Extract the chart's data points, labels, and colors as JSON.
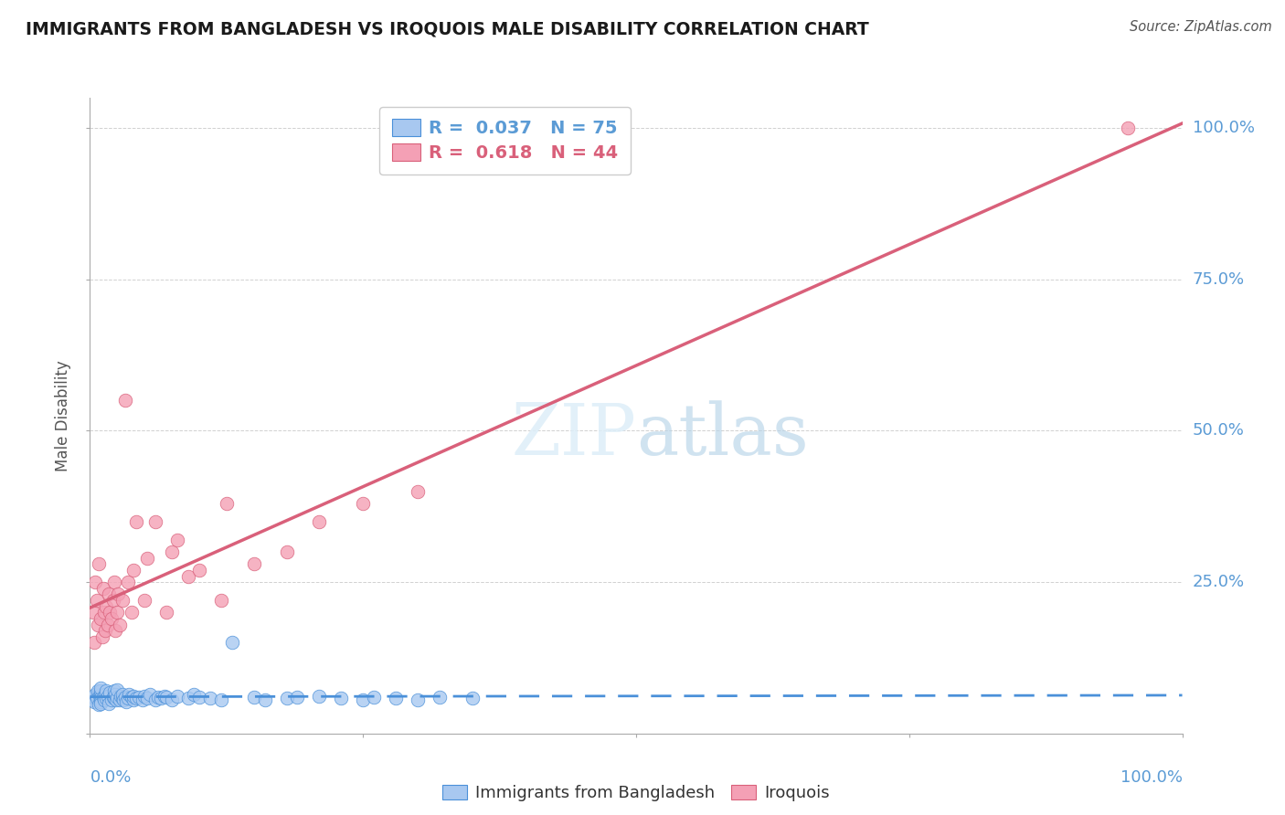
{
  "title": "IMMIGRANTS FROM BANGLADESH VS IROQUOIS MALE DISABILITY CORRELATION CHART",
  "source": "Source: ZipAtlas.com",
  "ylabel": "Male Disability",
  "series1_color": "#a8c8f0",
  "series2_color": "#f4a0b5",
  "line1_color": "#4a90d9",
  "line2_color": "#d9607a",
  "background_color": "#ffffff",
  "blue_label_color": "#5b9bd5",
  "blue_R": 0.037,
  "blue_N": 75,
  "pink_R": 0.618,
  "pink_N": 44,
  "blue_points_x": [
    0.002,
    0.003,
    0.004,
    0.005,
    0.006,
    0.007,
    0.008,
    0.009,
    0.01,
    0.01,
    0.01,
    0.01,
    0.01,
    0.01,
    0.01,
    0.01,
    0.012,
    0.013,
    0.014,
    0.015,
    0.015,
    0.016,
    0.017,
    0.018,
    0.02,
    0.021,
    0.022,
    0.022,
    0.023,
    0.024,
    0.025,
    0.025,
    0.027,
    0.028,
    0.03,
    0.03,
    0.031,
    0.032,
    0.033,
    0.035,
    0.036,
    0.038,
    0.04,
    0.04,
    0.042,
    0.045,
    0.048,
    0.05,
    0.052,
    0.055,
    0.06,
    0.062,
    0.065,
    0.068,
    0.07,
    0.075,
    0.08,
    0.09,
    0.095,
    0.1,
    0.11,
    0.12,
    0.13,
    0.15,
    0.16,
    0.18,
    0.19,
    0.21,
    0.23,
    0.25,
    0.26,
    0.28,
    0.3,
    0.32,
    0.35
  ],
  "blue_points_y": [
    0.055,
    0.06,
    0.052,
    0.065,
    0.058,
    0.07,
    0.048,
    0.063,
    0.055,
    0.06,
    0.065,
    0.07,
    0.058,
    0.052,
    0.075,
    0.05,
    0.06,
    0.055,
    0.065,
    0.058,
    0.07,
    0.062,
    0.05,
    0.068,
    0.055,
    0.06,
    0.058,
    0.07,
    0.065,
    0.055,
    0.06,
    0.072,
    0.055,
    0.062,
    0.058,
    0.065,
    0.055,
    0.06,
    0.052,
    0.058,
    0.065,
    0.06,
    0.055,
    0.062,
    0.058,
    0.06,
    0.055,
    0.062,
    0.058,
    0.065,
    0.055,
    0.06,
    0.058,
    0.062,
    0.06,
    0.055,
    0.062,
    0.058,
    0.065,
    0.06,
    0.058,
    0.055,
    0.15,
    0.06,
    0.055,
    0.058,
    0.06,
    0.062,
    0.058,
    0.055,
    0.06,
    0.058,
    0.055,
    0.06,
    0.058
  ],
  "pink_points_x": [
    0.003,
    0.004,
    0.005,
    0.006,
    0.007,
    0.008,
    0.01,
    0.011,
    0.012,
    0.013,
    0.014,
    0.015,
    0.016,
    0.017,
    0.018,
    0.02,
    0.021,
    0.022,
    0.023,
    0.025,
    0.026,
    0.027,
    0.03,
    0.032,
    0.035,
    0.038,
    0.04,
    0.042,
    0.05,
    0.052,
    0.06,
    0.07,
    0.075,
    0.08,
    0.09,
    0.1,
    0.12,
    0.125,
    0.15,
    0.18,
    0.21,
    0.25,
    0.3,
    0.95
  ],
  "pink_points_y": [
    0.2,
    0.15,
    0.25,
    0.22,
    0.18,
    0.28,
    0.19,
    0.16,
    0.24,
    0.2,
    0.17,
    0.21,
    0.18,
    0.23,
    0.2,
    0.19,
    0.22,
    0.25,
    0.17,
    0.2,
    0.23,
    0.18,
    0.22,
    0.55,
    0.25,
    0.2,
    0.27,
    0.35,
    0.22,
    0.29,
    0.35,
    0.2,
    0.3,
    0.32,
    0.26,
    0.27,
    0.22,
    0.38,
    0.28,
    0.3,
    0.35,
    0.38,
    0.4,
    1.0
  ]
}
